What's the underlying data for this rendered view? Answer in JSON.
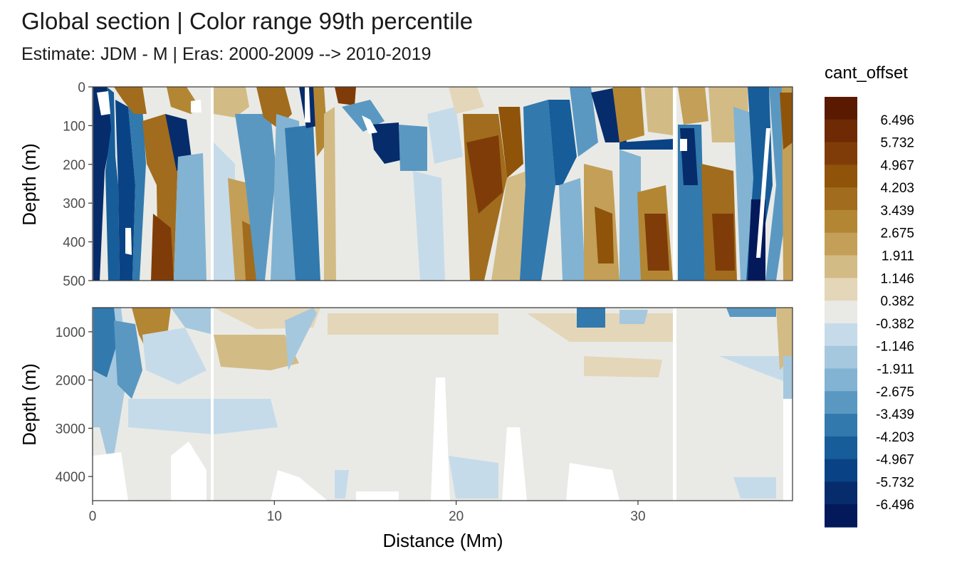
{
  "title": "Global section | Color range 99th percentile",
  "subtitle": "Estimate: JDM - M | Eras: 2000-2009 --> 2010-2019",
  "chart_data": {
    "type": "heatmap",
    "xlabel": "Distance (Mm)",
    "ylabel": "Depth (m)",
    "xlim": [
      0,
      38.5
    ],
    "x_ticks": [
      "0",
      "10",
      "20",
      "30"
    ],
    "grid": true,
    "panels": [
      {
        "name": "upper",
        "ylim": [
          0,
          500
        ],
        "y_reversed": true,
        "y_ticks": [
          "0",
          "100",
          "200",
          "300",
          "400",
          "500"
        ]
      },
      {
        "name": "lower",
        "ylim": [
          500,
          4500
        ],
        "y_reversed": true,
        "y_ticks": [
          "1000",
          "2000",
          "3000",
          "4000"
        ]
      }
    ],
    "legend": {
      "title": "cant_offset",
      "position": "right",
      "breaks": [
        "6.496",
        "5.732",
        "4.967",
        "4.203",
        "3.439",
        "2.675",
        "1.911",
        "1.146",
        "0.382",
        "-0.382",
        "-1.146",
        "-1.911",
        "-2.675",
        "-3.439",
        "-4.203",
        "-4.967",
        "-5.732",
        "-6.496"
      ],
      "colors": [
        "#5a1a02",
        "#6e2a04",
        "#803c08",
        "#8f5409",
        "#a16c1d",
        "#b38634",
        "#c39f58",
        "#d3bb86",
        "#e4d6b8",
        "#e9eae6",
        "#c6dbea",
        "#a5c8de",
        "#82b3d2",
        "#5a98c2",
        "#3279ad",
        "#175d99",
        "#0a4385",
        "#062c6c",
        "#04195a"
      ]
    }
  }
}
